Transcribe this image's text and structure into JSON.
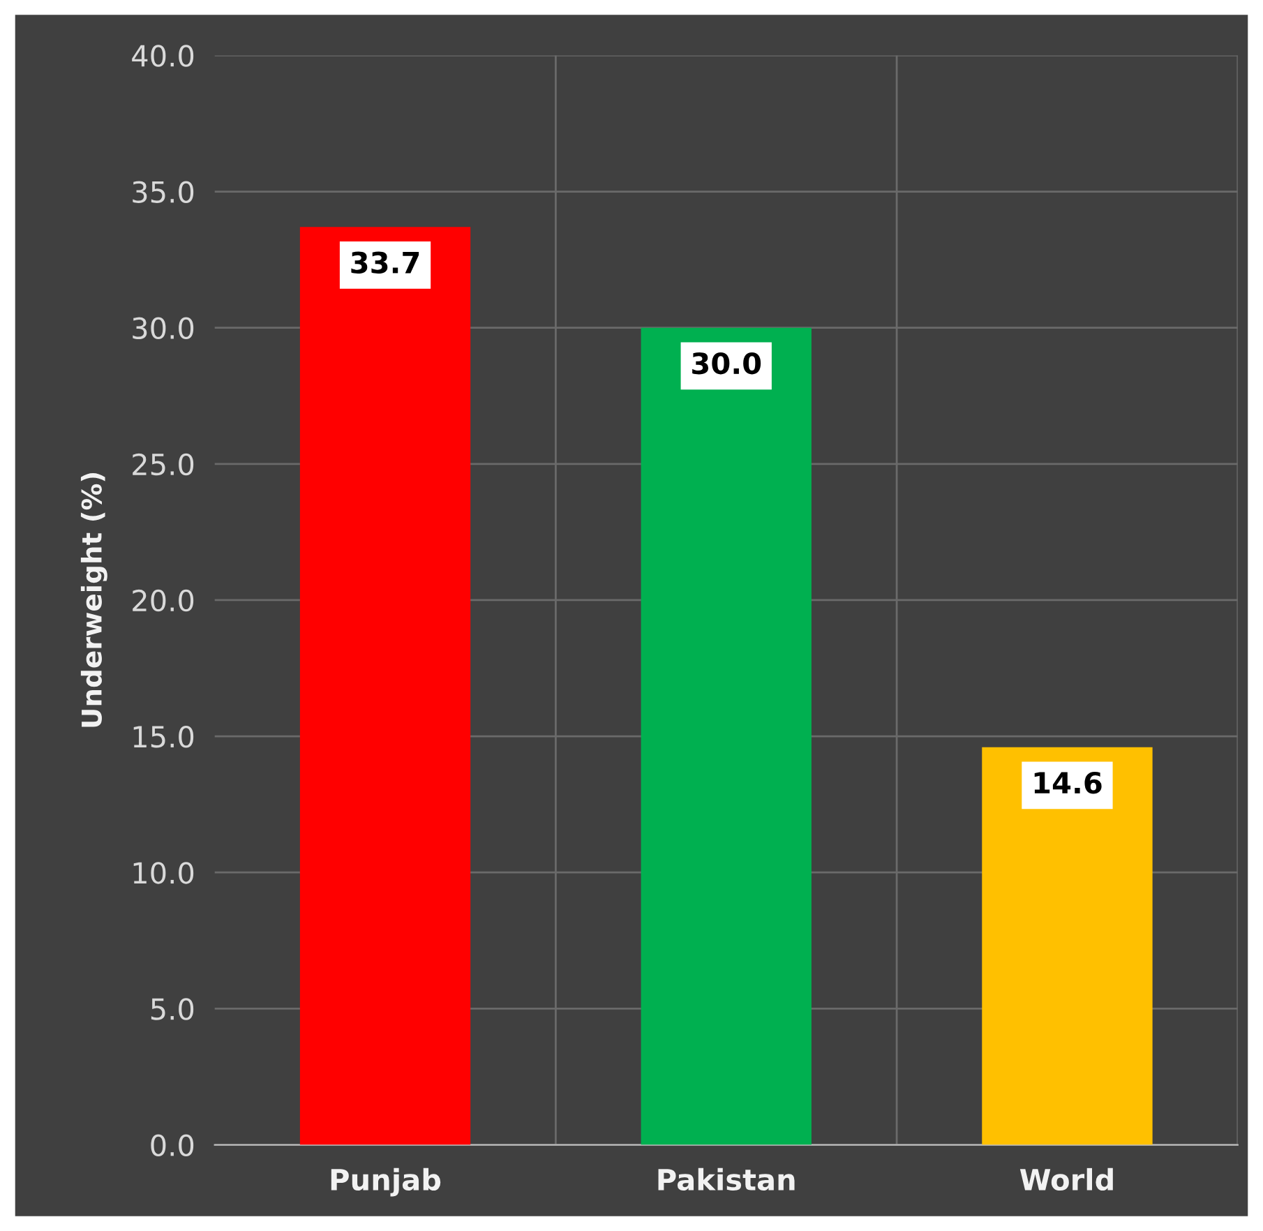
{
  "chart_data": {
    "type": "bar",
    "ylabel": "Underweight (%)",
    "categories": [
      "Punjab",
      "Pakistan",
      "World"
    ],
    "values": [
      33.7,
      30.0,
      14.6
    ],
    "colors": [
      "#ff0000",
      "#00b050",
      "#ffc000"
    ],
    "ylim": [
      0,
      40
    ],
    "yticks": [
      {
        "value": 0,
        "label": "0.0"
      },
      {
        "value": 5,
        "label": "5.0"
      },
      {
        "value": 10,
        "label": "10.0"
      },
      {
        "value": 15,
        "label": "15.0"
      },
      {
        "value": 20,
        "label": "20.0"
      },
      {
        "value": 25,
        "label": "25.0"
      },
      {
        "value": 30,
        "label": "30.0"
      },
      {
        "value": 35,
        "label": "35.0"
      },
      {
        "value": 40,
        "label": "40.0"
      }
    ],
    "grid": true,
    "value_labels": [
      "33.7",
      "30.0",
      "14.6"
    ]
  }
}
